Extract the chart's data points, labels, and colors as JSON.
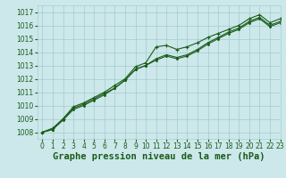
{
  "title": "Graphe pression niveau de la mer (hPa)",
  "bg_color": "#cce8ea",
  "grid_color": "#aacfd2",
  "line_color": "#1a5c1a",
  "marker_color": "#1a5c1a",
  "xlim": [
    -0.5,
    23
  ],
  "ylim": [
    1007.5,
    1017.5
  ],
  "yticks": [
    1008,
    1009,
    1010,
    1011,
    1012,
    1013,
    1014,
    1015,
    1016,
    1017
  ],
  "xticks": [
    0,
    1,
    2,
    3,
    4,
    5,
    6,
    7,
    8,
    9,
    10,
    11,
    12,
    13,
    14,
    15,
    16,
    17,
    18,
    19,
    20,
    21,
    22,
    23
  ],
  "series1": [
    1008.0,
    1008.3,
    1009.0,
    1009.9,
    1010.2,
    1010.6,
    1011.0,
    1011.5,
    1012.0,
    1012.9,
    1013.2,
    1014.4,
    1014.5,
    1014.2,
    1014.4,
    1014.7,
    1015.1,
    1015.4,
    1015.7,
    1016.0,
    1016.5,
    1016.8,
    1016.2,
    1016.5
  ],
  "series2": [
    1008.0,
    1008.2,
    1008.9,
    1009.7,
    1010.0,
    1010.4,
    1010.8,
    1011.3,
    1011.9,
    1012.7,
    1013.0,
    1013.5,
    1013.8,
    1013.6,
    1013.8,
    1014.2,
    1014.7,
    1015.1,
    1015.5,
    1015.8,
    1016.3,
    1016.6,
    1016.0,
    1016.3
  ],
  "series3": [
    1008.0,
    1008.2,
    1009.0,
    1009.8,
    1010.1,
    1010.5,
    1010.9,
    1011.3,
    1011.9,
    1012.7,
    1013.0,
    1013.4,
    1013.7,
    1013.5,
    1013.7,
    1014.1,
    1014.6,
    1015.0,
    1015.4,
    1015.7,
    1016.2,
    1016.5,
    1015.9,
    1016.2
  ],
  "title_color": "#1a5c1a",
  "title_fontsize": 7.5,
  "tick_fontsize": 5.5
}
